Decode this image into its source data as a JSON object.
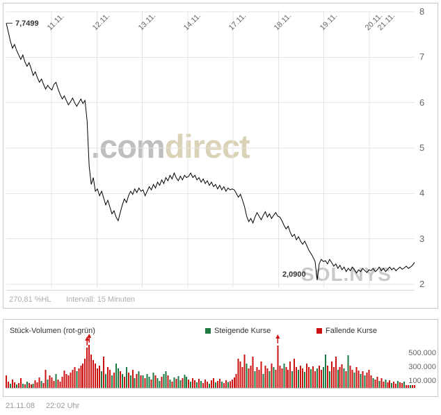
{
  "palette": {
    "up_green": "#1c7a40",
    "down_red": "#cc1111",
    "price_line": "#000000",
    "grid": "#e4e4e4",
    "watermark_gray": "#bfbfbf",
    "watermark_tan": "#dad3b8",
    "muted_text": "#adadad"
  },
  "main_chart": {
    "start_label": "7,7499",
    "low_label": "2,0900",
    "watermark_com": ".com",
    "watermark_direct": "direct",
    "watermark_symbol": "SOL.NYS",
    "range_percent": "270,81 %HL",
    "interval_label": "Intervall: 15 Minuten"
  },
  "volume_panel": {
    "title": "Stück-Volumen (rot-grün)",
    "legend_up": "Steigende Kurse",
    "legend_down": "Fallende Kurse"
  },
  "footer": {
    "date": "21.11.08",
    "time": "22:02 Uhr"
  },
  "chart_data": [
    {
      "type": "line",
      "symbol": "SOL.NYS",
      "interval": "15 Minuten",
      "x_dates": [
        "11.11.",
        "12.11.",
        "13.11.",
        "14.11.",
        "17.11.",
        "18.11.",
        "19.11.",
        "20.11.",
        "21.11."
      ],
      "ylim": [
        2,
        8
      ],
      "yticks": [
        8,
        7,
        6,
        5,
        4,
        3,
        2
      ],
      "start_annotation": {
        "label": "7,7499",
        "value": 7.7499
      },
      "low_annotation": {
        "label": "2,0900",
        "value": 2.09
      },
      "points_per_day": 22,
      "prices": [
        7.75,
        7.55,
        7.35,
        7.2,
        7.28,
        7.15,
        7.05,
        6.95,
        7.05,
        6.9,
        6.8,
        6.88,
        6.75,
        6.6,
        6.68,
        6.55,
        6.45,
        6.52,
        6.4,
        6.3,
        6.38,
        6.32,
        6.28,
        6.4,
        6.45,
        6.3,
        6.18,
        6.08,
        6.15,
        6.05,
        5.95,
        6.02,
        6.1,
        6.0,
        5.92,
        6.0,
        6.08,
        5.98,
        6.05,
        5.6,
        4.6,
        4.2,
        4.35,
        4.05,
        4.1,
        3.95,
        4.05,
        3.9,
        3.75,
        3.85,
        3.7,
        3.55,
        3.62,
        3.48,
        3.4,
        3.58,
        3.75,
        3.88,
        3.8,
        3.95,
        4.05,
        3.98,
        4.1,
        4.02,
        4.12,
        4.05,
        4.08,
        3.95,
        4.05,
        4.15,
        4.08,
        4.2,
        4.12,
        4.25,
        4.18,
        4.3,
        4.22,
        4.35,
        4.28,
        4.4,
        4.32,
        4.45,
        4.35,
        4.28,
        4.38,
        4.3,
        4.4,
        4.35,
        4.38,
        4.45,
        4.35,
        4.4,
        4.3,
        4.35,
        4.25,
        4.32,
        4.22,
        4.28,
        4.18,
        4.25,
        4.15,
        4.2,
        4.1,
        4.18,
        4.08,
        4.15,
        4.05,
        4.12,
        4.08,
        4.1,
        4.08,
        4.0,
        3.92,
        3.98,
        3.85,
        3.7,
        3.5,
        3.38,
        3.45,
        3.35,
        3.48,
        3.58,
        3.5,
        3.42,
        3.52,
        3.6,
        3.48,
        3.55,
        3.45,
        3.52,
        3.58,
        3.5,
        3.48,
        3.4,
        3.3,
        3.22,
        3.28,
        3.15,
        3.05,
        3.1,
        2.98,
        3.05,
        2.95,
        2.88,
        2.95,
        2.85,
        2.75,
        2.68,
        2.6,
        2.5,
        2.09,
        2.45,
        2.55,
        2.5,
        2.52,
        2.45,
        2.55,
        2.48,
        2.4,
        2.45,
        2.35,
        2.42,
        2.32,
        2.38,
        2.28,
        2.35,
        2.3,
        2.38,
        2.32,
        2.25,
        2.32,
        2.28,
        2.35,
        2.3,
        2.26,
        2.32,
        2.3,
        2.35,
        2.28,
        2.32,
        2.38,
        2.3,
        2.35,
        2.28,
        2.33,
        2.38,
        2.32,
        2.36,
        2.3,
        2.34,
        2.38,
        2.33,
        2.36,
        2.4,
        2.35,
        2.38,
        2.42,
        2.48
      ]
    },
    {
      "type": "bar",
      "title": "Stück-Volumen (rot-grün)",
      "series": [
        {
          "name": "Steigende Kurse",
          "color": "#1c7a40"
        },
        {
          "name": "Fallende Kurse",
          "color": "#cc1111"
        }
      ],
      "ytick_labels": [
        "500.000",
        "300.000",
        "100.000"
      ],
      "ytick_values": [
        500000,
        300000,
        100000
      ],
      "volumes_thousands": [
        180,
        90,
        60,
        120,
        80,
        50,
        70,
        140,
        60,
        50,
        90,
        70,
        50,
        60,
        110,
        80,
        150,
        100,
        70,
        260,
        120,
        180,
        150,
        100,
        200,
        120,
        90,
        160,
        250,
        200,
        180,
        220,
        260,
        300,
        240,
        280,
        320,
        350,
        420,
        580,
        620,
        480,
        400,
        350,
        280,
        320,
        240,
        450,
        200,
        300,
        260,
        180,
        220,
        350,
        280,
        240,
        200,
        160,
        300,
        220,
        180,
        260,
        140,
        200,
        240,
        180,
        180,
        140,
        200,
        160,
        120,
        220,
        180,
        140,
        100,
        160,
        200,
        240,
        180,
        120,
        90,
        150,
        130,
        170,
        110,
        140,
        190,
        160,
        120,
        90,
        140,
        110,
        80,
        130,
        100,
        70,
        120,
        90,
        60,
        110,
        140,
        80,
        100,
        130,
        90,
        70,
        110,
        85,
        95,
        120,
        150,
        200,
        420,
        380,
        300,
        480,
        350,
        280,
        320,
        450,
        240,
        300,
        260,
        380,
        200,
        320,
        280,
        240,
        350,
        300,
        260,
        610,
        320,
        280,
        350,
        300,
        260,
        380,
        240,
        420,
        300,
        260,
        320,
        280,
        230,
        350,
        300,
        270,
        310,
        240,
        280,
        320,
        260,
        300,
        480,
        320,
        240,
        380,
        300,
        450,
        260,
        300,
        340,
        280,
        240,
        470,
        320,
        260,
        220,
        300,
        250,
        200,
        240,
        180,
        220,
        260,
        180,
        140,
        120,
        160,
        100,
        140,
        90,
        120,
        80,
        110,
        70,
        90,
        60,
        100,
        80,
        70,
        90,
        60,
        75,
        85,
        65,
        95
      ],
      "colors": "rrgrrgrrgrgrrgrrrgrrgrrrgrrrrrrrrrgrrrrrrrrrrrgrgrrgrggrgrgrgrgrgrgrggrgrggrggrgrgrggrggrgrrgrgrrrgrrgrrgrrgrrrrrrrrgrrrgrrrgrrgrgrrrrgrrrgrrgrrgrrgrrgrrggrgrrrgrrgrgrrgrrgrgrrrgrrgrrgrrgrrgrrgrrgrr",
      "arrow_indices": [
        39,
        40,
        131
      ]
    }
  ]
}
